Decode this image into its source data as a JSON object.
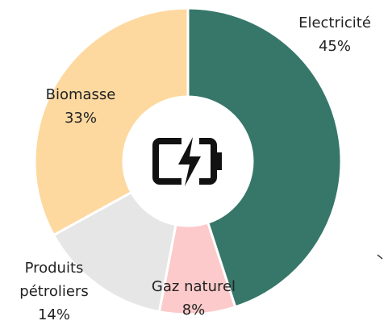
{
  "chart_data": {
    "type": "donut",
    "categories": [
      "Electricité",
      "Gaz naturel",
      "Produits pétroliers",
      "Biomasse"
    ],
    "values": [
      45,
      8,
      14,
      33
    ],
    "value_labels": [
      "45%",
      "8%",
      "14%",
      "33%"
    ],
    "colors": [
      "#36776a",
      "#fccaca",
      "#e6e6e6",
      "#fdd9a0"
    ]
  }
}
